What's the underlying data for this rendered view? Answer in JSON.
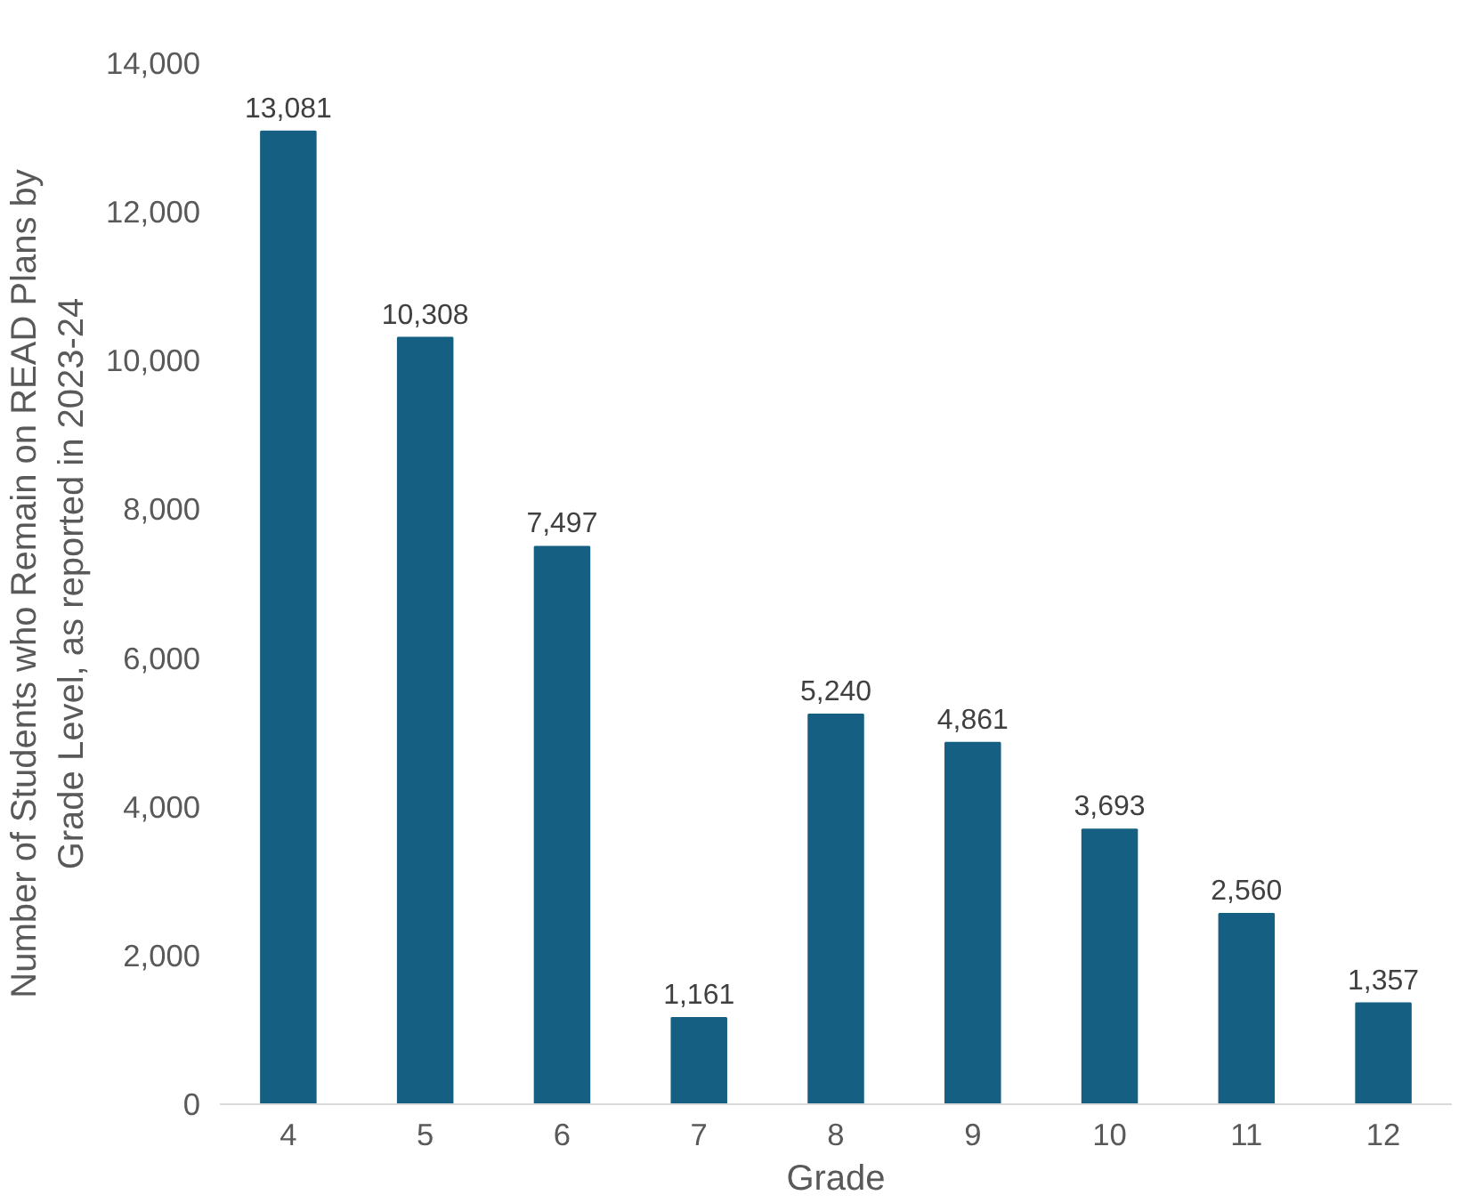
{
  "chart_data": {
    "type": "bar",
    "xlabel": "Grade",
    "ylabel": "Number of Students who Remain on READ Plans by Grade Level, as reported in 2023-24",
    "categories": [
      "4",
      "5",
      "6",
      "7",
      "8",
      "9",
      "10",
      "11",
      "12"
    ],
    "values": [
      13081,
      10308,
      7497,
      1161,
      5240,
      4861,
      3693,
      2560,
      1357
    ],
    "color": "#156082",
    "ylim": [
      0,
      14000
    ],
    "yticks": [
      {
        "value": 0,
        "label": "0"
      },
      {
        "value": 2000,
        "label": "2,000"
      },
      {
        "value": 4000,
        "label": "4,000"
      },
      {
        "value": 6000,
        "label": "6,000"
      },
      {
        "value": 8000,
        "label": "8,000"
      },
      {
        "value": 10000,
        "label": "10,000"
      },
      {
        "value": 12000,
        "label": "12,000"
      },
      {
        "value": 14000,
        "label": "14,000"
      }
    ],
    "value_labels": [
      "13,081",
      "10,308",
      "7,497",
      "1,161",
      "5,240",
      "4,861",
      "3,693",
      "2,560",
      "1,357"
    ],
    "grid": false
  }
}
